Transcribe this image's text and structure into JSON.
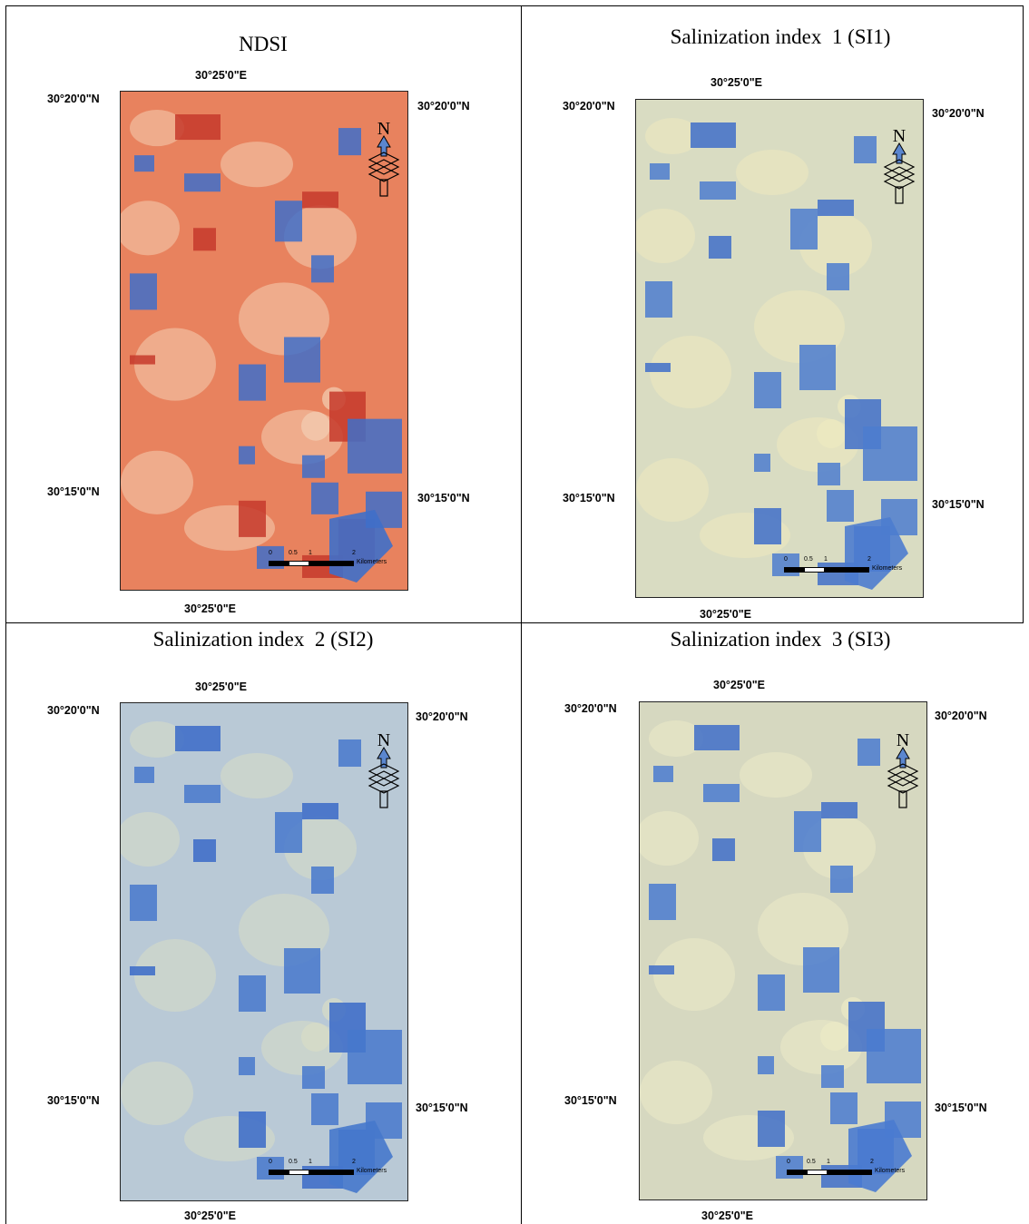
{
  "panels": [
    {
      "title": "NDSI",
      "top_lon": "30°25'0\"E",
      "bottom_lon": "30°25'0\"E",
      "left_lat_top": "30°20'0\"N",
      "left_lat_bottom": "30°15'0\"N",
      "right_lat_top": "30°20'0\"N",
      "right_lat_bottom": "30°15'0\"N",
      "north": "N",
      "scale_labels": [
        "0",
        "0.5",
        "1",
        "2"
      ],
      "scale_unit": "Kilometers",
      "palette": {
        "base": "#e8825e",
        "dark": "#c53a2c",
        "light": "#f4cfb3",
        "blue": "#3f6fc9"
      }
    },
    {
      "title": "Salinization index  1 (SI1)",
      "top_lon": "30°25'0\"E",
      "bottom_lon": "30°25'0\"E",
      "left_lat_top": "30°20'0\"N",
      "left_lat_bottom": "30°15'0\"N",
      "right_lat_top": "30°20'0\"N",
      "right_lat_bottom": "30°15'0\"N",
      "north": "N",
      "scale_labels": [
        "0",
        "0.5",
        "1",
        "2"
      ],
      "scale_unit": "Kilometers",
      "palette": {
        "base": "#d9dcc2",
        "dark": "#3f6fc9",
        "light": "#eeeac0",
        "blue": "#4c7ccf"
      }
    },
    {
      "title": "Salinization index  2 (SI2)",
      "top_lon": "30°25'0\"E",
      "bottom_lon": "30°25'0\"E",
      "left_lat_top": "30°20'0\"N",
      "left_lat_bottom": "30°15'0\"N",
      "right_lat_top": "30°20'0\"N",
      "right_lat_bottom": "30°15'0\"N",
      "north": "N",
      "scale_labels": [
        "0",
        "0.5",
        "1",
        "2"
      ],
      "scale_unit": "Kilometers",
      "palette": {
        "base": "#b9c9d6",
        "dark": "#3a6ac8",
        "light": "#d8ddc6",
        "blue": "#4678cc"
      }
    },
    {
      "title": "Salinization index  3 (SI3)",
      "top_lon": "30°25'0\"E",
      "bottom_lon": "30°25'0\"E",
      "left_lat_top": "30°20'0\"N",
      "left_lat_bottom": "30°15'0\"N",
      "right_lat_top": "30°20'0\"N",
      "right_lat_bottom": "30°15'0\"N",
      "north": "N",
      "scale_labels": [
        "0",
        "0.5",
        "1",
        "2"
      ],
      "scale_unit": "Kilometers",
      "palette": {
        "base": "#d6d8c0",
        "dark": "#3f6fc9",
        "light": "#ecebc6",
        "blue": "#4a7bd0"
      }
    }
  ]
}
